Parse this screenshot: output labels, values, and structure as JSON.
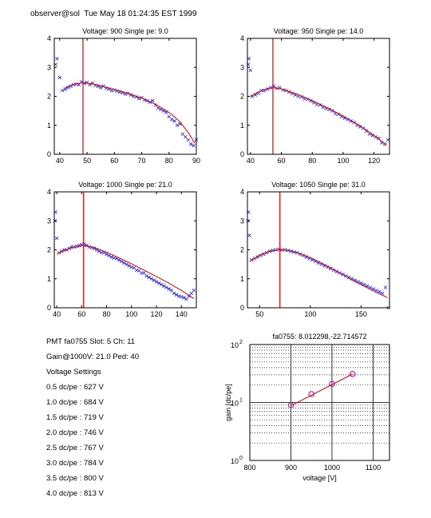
{
  "header": "observer@sol  Tue May 18 01:24:35 EST 1999",
  "info": {
    "pmt_line": "PMT fa0755 Slot: 5 Ch: 11",
    "gain_line": "Gain@1000V: 21.0 Ped: 40",
    "settings_title": "Voltage Settings",
    "settings": [
      "0.5 dc/pe : 627 V",
      "1.0 dc/pe : 684 V",
      "1.5 dc/pe : 719 V",
      "2.0 dc/pe : 746 V",
      "2.5 dc/pe : 767 V",
      "3.0 dc/pe : 784 V",
      "3.5 dc/pe : 800 V",
      "4.0 dc/pe : 813 V"
    ]
  },
  "chart_data": [
    {
      "type": "scatter",
      "title": "Voltage: 900 Single pe: 9.0",
      "xlim": [
        38,
        90
      ],
      "ylim": [
        0,
        4
      ],
      "xticks": [
        40,
        50,
        60,
        70,
        80,
        90
      ],
      "yticks": [
        0,
        1,
        2,
        3,
        4
      ],
      "vline": 48.5,
      "fit": [
        [
          42,
          2.3
        ],
        [
          45,
          2.42
        ],
        [
          48.5,
          2.47
        ],
        [
          52,
          2.43
        ],
        [
          56,
          2.34
        ],
        [
          60,
          2.24
        ],
        [
          65,
          2.1
        ],
        [
          70,
          1.94
        ],
        [
          75,
          1.73
        ],
        [
          78,
          1.56
        ],
        [
          81,
          1.38
        ],
        [
          84,
          1.12
        ],
        [
          87,
          0.75
        ],
        [
          89.5,
          0.38
        ]
      ],
      "points": [
        [
          38.5,
          3.1
        ],
        [
          39,
          3.3
        ],
        [
          40,
          2.65
        ],
        [
          41,
          2.2
        ],
        [
          42,
          2.25
        ],
        [
          43,
          2.3
        ],
        [
          44,
          2.35
        ],
        [
          45,
          2.4
        ],
        [
          46,
          2.42
        ],
        [
          47,
          2.4
        ],
        [
          48,
          2.5
        ],
        [
          49,
          2.45
        ],
        [
          50,
          2.48
        ],
        [
          51,
          2.4
        ],
        [
          52,
          2.45
        ],
        [
          53,
          2.38
        ],
        [
          54,
          2.35
        ],
        [
          55,
          2.3
        ],
        [
          56,
          2.35
        ],
        [
          57,
          2.28
        ],
        [
          58,
          2.25
        ],
        [
          59,
          2.2
        ],
        [
          60,
          2.22
        ],
        [
          61,
          2.18
        ],
        [
          62,
          2.15
        ],
        [
          63,
          2.12
        ],
        [
          64,
          2.08
        ],
        [
          65,
          2.1
        ],
        [
          66,
          2.05
        ],
        [
          67,
          2.0
        ],
        [
          68,
          1.98
        ],
        [
          69,
          1.92
        ],
        [
          70,
          1.95
        ],
        [
          71,
          1.88
        ],
        [
          72,
          1.85
        ],
        [
          73,
          1.8
        ],
        [
          74,
          1.85
        ],
        [
          75,
          1.7
        ],
        [
          76,
          1.6
        ],
        [
          77,
          1.55
        ],
        [
          78,
          1.5
        ],
        [
          79,
          1.45
        ],
        [
          80,
          1.3
        ],
        [
          81,
          1.2
        ],
        [
          82,
          1.15
        ],
        [
          83,
          1.0
        ],
        [
          84,
          1.05
        ],
        [
          85,
          0.7
        ],
        [
          86,
          0.6
        ],
        [
          87,
          0.5
        ],
        [
          88,
          0.35
        ],
        [
          89,
          0.3
        ],
        [
          90,
          0.5
        ]
      ]
    },
    {
      "type": "scatter",
      "title": "Voltage: 950 Single pe: 14.0",
      "xlim": [
        38,
        130
      ],
      "ylim": [
        0,
        4
      ],
      "xticks": [
        40,
        60,
        80,
        100,
        120
      ],
      "yticks": [
        0,
        1,
        2,
        3,
        4
      ],
      "vline": 54.5,
      "fit": [
        [
          40,
          2.0
        ],
        [
          45,
          2.15
        ],
        [
          50,
          2.25
        ],
        [
          54.5,
          2.3
        ],
        [
          60,
          2.25
        ],
        [
          70,
          2.08
        ],
        [
          80,
          1.85
        ],
        [
          90,
          1.6
        ],
        [
          100,
          1.32
        ],
        [
          110,
          1.02
        ],
        [
          120,
          0.65
        ],
        [
          128,
          0.32
        ]
      ],
      "points": [
        [
          38.5,
          3.1
        ],
        [
          39,
          3.3
        ],
        [
          40,
          2.9
        ],
        [
          41,
          2.0
        ],
        [
          43,
          2.05
        ],
        [
          45,
          2.1
        ],
        [
          47,
          2.2
        ],
        [
          49,
          2.2
        ],
        [
          51,
          2.25
        ],
        [
          53,
          2.3
        ],
        [
          55,
          2.35
        ],
        [
          57,
          2.28
        ],
        [
          59,
          2.3
        ],
        [
          61,
          2.22
        ],
        [
          63,
          2.2
        ],
        [
          65,
          2.15
        ],
        [
          67,
          2.1
        ],
        [
          69,
          2.05
        ],
        [
          71,
          2.0
        ],
        [
          73,
          1.98
        ],
        [
          75,
          1.92
        ],
        [
          77,
          1.9
        ],
        [
          79,
          1.85
        ],
        [
          81,
          1.78
        ],
        [
          83,
          1.72
        ],
        [
          85,
          1.7
        ],
        [
          87,
          1.62
        ],
        [
          89,
          1.58
        ],
        [
          91,
          1.55
        ],
        [
          93,
          1.5
        ],
        [
          95,
          1.4
        ],
        [
          97,
          1.38
        ],
        [
          99,
          1.3
        ],
        [
          101,
          1.25
        ],
        [
          103,
          1.2
        ],
        [
          105,
          1.15
        ],
        [
          107,
          1.1
        ],
        [
          109,
          1.0
        ],
        [
          111,
          0.95
        ],
        [
          113,
          0.9
        ],
        [
          115,
          0.8
        ],
        [
          117,
          0.7
        ],
        [
          119,
          0.65
        ],
        [
          121,
          0.6
        ],
        [
          123,
          0.55
        ],
        [
          125,
          0.4
        ],
        [
          127,
          0.35
        ],
        [
          129,
          0.5
        ]
      ]
    },
    {
      "type": "scatter",
      "title": "Voltage: 1000 Single pe: 21.0",
      "xlim": [
        38,
        152
      ],
      "ylim": [
        0,
        4
      ],
      "xticks": [
        40,
        60,
        80,
        100,
        120,
        140
      ],
      "yticks": [
        0,
        1,
        2,
        3,
        4
      ],
      "vline": 61.5,
      "fit": [
        [
          40,
          1.85
        ],
        [
          50,
          2.05
        ],
        [
          61.5,
          2.15
        ],
        [
          70,
          2.08
        ],
        [
          80,
          1.92
        ],
        [
          90,
          1.72
        ],
        [
          100,
          1.52
        ],
        [
          110,
          1.3
        ],
        [
          120,
          1.08
        ],
        [
          130,
          0.85
        ],
        [
          140,
          0.6
        ],
        [
          150,
          0.32
        ]
      ],
      "points": [
        [
          38.5,
          3.0
        ],
        [
          39,
          3.3
        ],
        [
          40,
          2.4
        ],
        [
          42,
          1.9
        ],
        [
          44,
          1.95
        ],
        [
          46,
          2.0
        ],
        [
          48,
          2.0
        ],
        [
          50,
          2.05
        ],
        [
          52,
          2.1
        ],
        [
          54,
          2.1
        ],
        [
          56,
          2.12
        ],
        [
          58,
          2.15
        ],
        [
          60,
          2.18
        ],
        [
          62,
          2.2
        ],
        [
          64,
          2.15
        ],
        [
          66,
          2.1
        ],
        [
          68,
          2.08
        ],
        [
          70,
          2.05
        ],
        [
          72,
          2.0
        ],
        [
          74,
          1.95
        ],
        [
          76,
          1.9
        ],
        [
          78,
          1.9
        ],
        [
          80,
          1.85
        ],
        [
          82,
          1.8
        ],
        [
          84,
          1.75
        ],
        [
          86,
          1.72
        ],
        [
          88,
          1.7
        ],
        [
          90,
          1.65
        ],
        [
          92,
          1.6
        ],
        [
          94,
          1.55
        ],
        [
          96,
          1.5
        ],
        [
          98,
          1.45
        ],
        [
          100,
          1.4
        ],
        [
          102,
          1.38
        ],
        [
          104,
          1.3
        ],
        [
          106,
          1.28
        ],
        [
          108,
          1.2
        ],
        [
          110,
          1.2
        ],
        [
          112,
          1.1
        ],
        [
          114,
          1.05
        ],
        [
          116,
          1.0
        ],
        [
          118,
          0.95
        ],
        [
          120,
          0.9
        ],
        [
          122,
          0.85
        ],
        [
          124,
          0.8
        ],
        [
          126,
          0.75
        ],
        [
          128,
          0.7
        ],
        [
          130,
          0.65
        ],
        [
          132,
          0.6
        ],
        [
          134,
          0.5
        ],
        [
          136,
          0.45
        ],
        [
          138,
          0.4
        ],
        [
          140,
          0.38
        ],
        [
          142,
          0.35
        ],
        [
          144,
          0.3
        ],
        [
          146,
          0.4
        ],
        [
          148,
          0.5
        ],
        [
          150,
          0.6
        ]
      ]
    },
    {
      "type": "scatter",
      "title": "Voltage: 1050 Single pe: 31.0",
      "xlim": [
        38,
        178
      ],
      "ylim": [
        0,
        4
      ],
      "xticks": [
        50,
        100,
        150
      ],
      "yticks": [
        0,
        1,
        2,
        3,
        4
      ],
      "vline": 70,
      "fit": [
        [
          40,
          1.6
        ],
        [
          50,
          1.82
        ],
        [
          60,
          1.95
        ],
        [
          70,
          2.0
        ],
        [
          80,
          1.97
        ],
        [
          90,
          1.87
        ],
        [
          100,
          1.73
        ],
        [
          110,
          1.56
        ],
        [
          120,
          1.38
        ],
        [
          130,
          1.18
        ],
        [
          140,
          0.98
        ],
        [
          150,
          0.8
        ],
        [
          160,
          0.62
        ],
        [
          170,
          0.45
        ],
        [
          176,
          0.35
        ]
      ],
      "points": [
        [
          38.5,
          3.0
        ],
        [
          39,
          3.3
        ],
        [
          40,
          2.5
        ],
        [
          42,
          1.65
        ],
        [
          45,
          1.7
        ],
        [
          48,
          1.75
        ],
        [
          51,
          1.8
        ],
        [
          54,
          1.85
        ],
        [
          57,
          1.9
        ],
        [
          60,
          1.95
        ],
        [
          63,
          1.98
        ],
        [
          66,
          2.0
        ],
        [
          69,
          2.02
        ],
        [
          72,
          2.0
        ],
        [
          75,
          2.0
        ],
        [
          78,
          1.98
        ],
        [
          81,
          1.95
        ],
        [
          84,
          1.92
        ],
        [
          87,
          1.9
        ],
        [
          90,
          1.85
        ],
        [
          93,
          1.8
        ],
        [
          96,
          1.75
        ],
        [
          99,
          1.7
        ],
        [
          102,
          1.65
        ],
        [
          105,
          1.6
        ],
        [
          108,
          1.55
        ],
        [
          111,
          1.5
        ],
        [
          114,
          1.45
        ],
        [
          117,
          1.4
        ],
        [
          120,
          1.35
        ],
        [
          123,
          1.3
        ],
        [
          126,
          1.25
        ],
        [
          129,
          1.2
        ],
        [
          132,
          1.15
        ],
        [
          135,
          1.1
        ],
        [
          138,
          1.05
        ],
        [
          141,
          1.0
        ],
        [
          144,
          0.95
        ],
        [
          147,
          0.9
        ],
        [
          150,
          0.85
        ],
        [
          153,
          0.8
        ],
        [
          156,
          0.75
        ],
        [
          159,
          0.7
        ],
        [
          162,
          0.65
        ],
        [
          165,
          0.6
        ],
        [
          168,
          0.55
        ],
        [
          171,
          0.5
        ],
        [
          174,
          0.7
        ],
        [
          177,
          0.0
        ]
      ]
    },
    {
      "type": "line",
      "title": "fa0755: 8.012298,-22.714572",
      "xlabel": "voltage [V]",
      "ylabel": "gain [dc/pe]",
      "xlim": [
        800,
        1140
      ],
      "ylim": [
        1,
        100
      ],
      "yscale": "log",
      "xticks": [
        800,
        900,
        1000,
        1100
      ],
      "grid": true,
      "x": [
        900,
        950,
        1000,
        1050
      ],
      "y": [
        9.0,
        14.0,
        21.0,
        31.0
      ],
      "fit_line": [
        [
          900,
          8.8
        ],
        [
          1050,
          31.0
        ]
      ]
    }
  ]
}
